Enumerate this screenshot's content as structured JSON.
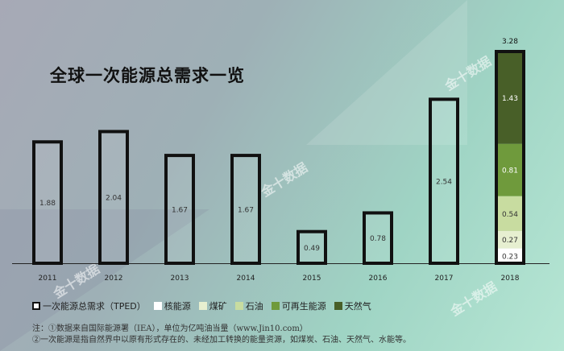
{
  "title": "全球一次能源总需求一览",
  "watermark": "金十数据",
  "chart_data": {
    "type": "bar",
    "categories": [
      "2011",
      "2012",
      "2013",
      "2014",
      "2015",
      "2016",
      "2017",
      "2018"
    ],
    "series": [
      {
        "name": "一次能源总需求（TPED）",
        "values": [
          1.88,
          2.04,
          1.67,
          1.67,
          0.49,
          0.78,
          2.54,
          3.28
        ]
      }
    ],
    "stack_2018": [
      {
        "name": "核能源",
        "value": 0.23,
        "color": "#ffffff"
      },
      {
        "name": "煤矿",
        "value": 0.27,
        "color": "#e6efd0"
      },
      {
        "name": "石油",
        "value": 0.54,
        "color": "#c8dca0"
      },
      {
        "name": "可再生能源",
        "value": 0.81,
        "color": "#6f9a3c"
      },
      {
        "name": "天然气",
        "value": 1.43,
        "color": "#485f28"
      }
    ],
    "total_label_2018": "3.28",
    "value_labels": [
      "1.88",
      "2.04",
      "1.67",
      "1.67",
      "0.49",
      "0.78",
      "2.54"
    ],
    "stack_labels": [
      "0.23",
      "0.27",
      "0.54",
      "0.81",
      "1.43"
    ],
    "ylim": [
      0,
      3.4
    ],
    "grid": false,
    "legend_position": "bottom"
  },
  "legend": {
    "total_label": "一次能源总需求（TPED）",
    "items": [
      "核能源",
      "煤矿",
      "石油",
      "可再生能源",
      "天然气"
    ]
  },
  "notes": {
    "line1": "注：①数据来自国际能源署（IEA），单位为亿吨油当量（www.Jin10.com）",
    "line2": "②一次能源是指自然界中以原有形式存在的、未经加工转换的能量资源，如煤炭、石油、天然气、水能等。"
  },
  "colors": {
    "outline": "#111111",
    "nuclear": "#ffffff",
    "coal": "#e6efd0",
    "oil": "#c8dca0",
    "renewable": "#6f9a3c",
    "gas": "#485f28"
  }
}
